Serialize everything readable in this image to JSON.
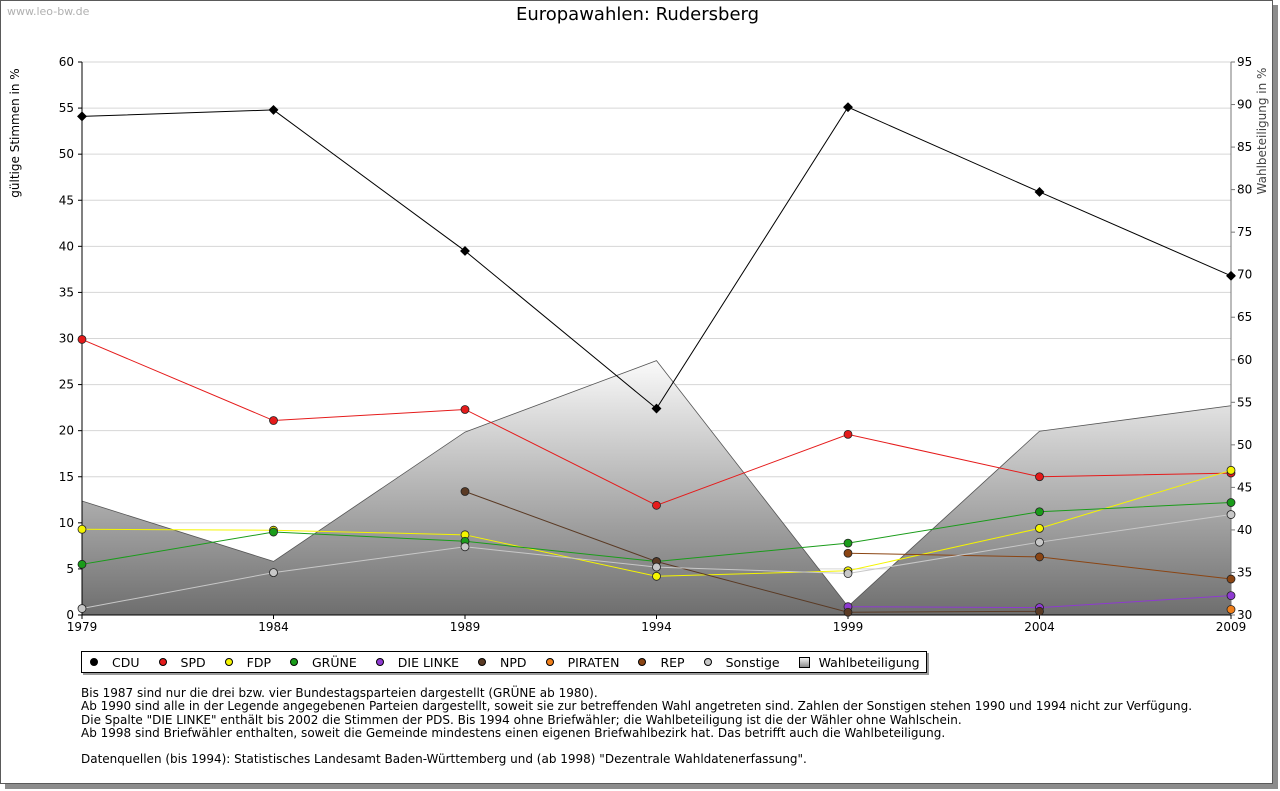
{
  "watermark": "www.leo-bw.de",
  "chart_data": {
    "type": "line",
    "title": "Europawahlen: Rudersberg",
    "ylabel": "gültige Stimmen in %",
    "y2label": "Wahlbeteiligung in %",
    "ylim": [
      0,
      60
    ],
    "y2lim": [
      30,
      95
    ],
    "yticks": [
      0,
      5,
      10,
      15,
      20,
      25,
      30,
      35,
      40,
      45,
      50,
      55,
      60
    ],
    "y2ticks": [
      30,
      35,
      40,
      45,
      50,
      55,
      60,
      65,
      70,
      75,
      80,
      85,
      90,
      95
    ],
    "categories": [
      "1979",
      "1984",
      "1989",
      "1994",
      "1999",
      "2004",
      "2009"
    ],
    "grid": true,
    "legend_position": "bottom",
    "series": [
      {
        "name": "CDU",
        "color": "#000000",
        "values": [
          54.1,
          54.8,
          39.5,
          22.4,
          55.1,
          45.9,
          36.8
        ]
      },
      {
        "name": "SPD",
        "color": "#e51b1b",
        "values": [
          29.9,
          21.1,
          22.3,
          11.9,
          19.6,
          15.0,
          15.4
        ]
      },
      {
        "name": "FDP",
        "color": "#f5f500",
        "values": [
          9.3,
          9.2,
          8.7,
          4.2,
          4.8,
          9.4,
          15.7
        ]
      },
      {
        "name": "GRÜNE",
        "color": "#1a9c1a",
        "values": [
          5.5,
          9.0,
          8.0,
          5.8,
          7.8,
          11.2,
          12.2
        ]
      },
      {
        "name": "DIE LINKE",
        "color": "#8e3ad1",
        "values": [
          null,
          null,
          null,
          null,
          0.9,
          0.8,
          2.1
        ]
      },
      {
        "name": "NPD",
        "color": "#5a3a24",
        "values": [
          null,
          null,
          13.4,
          5.8,
          0.3,
          0.4,
          null
        ]
      },
      {
        "name": "PIRATEN",
        "color": "#f07f1a",
        "values": [
          null,
          null,
          null,
          null,
          null,
          null,
          0.6
        ]
      },
      {
        "name": "REP",
        "color": "#8b4513",
        "values": [
          null,
          null,
          null,
          null,
          6.7,
          6.3,
          3.9
        ]
      },
      {
        "name": "Sonstige",
        "color": "#c8c8c8",
        "values": [
          0.7,
          4.6,
          7.4,
          5.2,
          4.5,
          7.9,
          10.9
        ]
      }
    ],
    "turnout": {
      "name": "Wahlbeteiligung",
      "values": [
        43.4,
        36.3,
        51.5,
        59.9,
        31.0,
        51.6,
        54.6
      ]
    }
  },
  "notes": [
    "Bis 1987 sind nur die drei bzw. vier Bundestagsparteien dargestellt (GRÜNE ab 1980).",
    "Ab 1990 sind alle in der Legende angegebenen Parteien dargestellt, soweit sie zur betreffenden Wahl angetreten sind. Zahlen der Sonstigen stehen 1990 und 1994 nicht zur Verfügung.",
    "Die Spalte \"DIE LINKE\" enthält bis 2002 die Stimmen der PDS. Bis 1994 ohne Briefwähler; die Wahlbeteiligung ist die der Wähler ohne Wahlschein.",
    "Ab 1998 sind Briefwähler enthalten, soweit die Gemeinde mindestens einen eigenen Briefwahlbezirk hat. Das betrifft auch die Wahlbeteiligung.",
    "",
    "Datenquellen (bis 1994): Statistisches Landesamt Baden-Württemberg und (ab 1998) \"Dezentrale Wahldatenerfassung\"."
  ]
}
